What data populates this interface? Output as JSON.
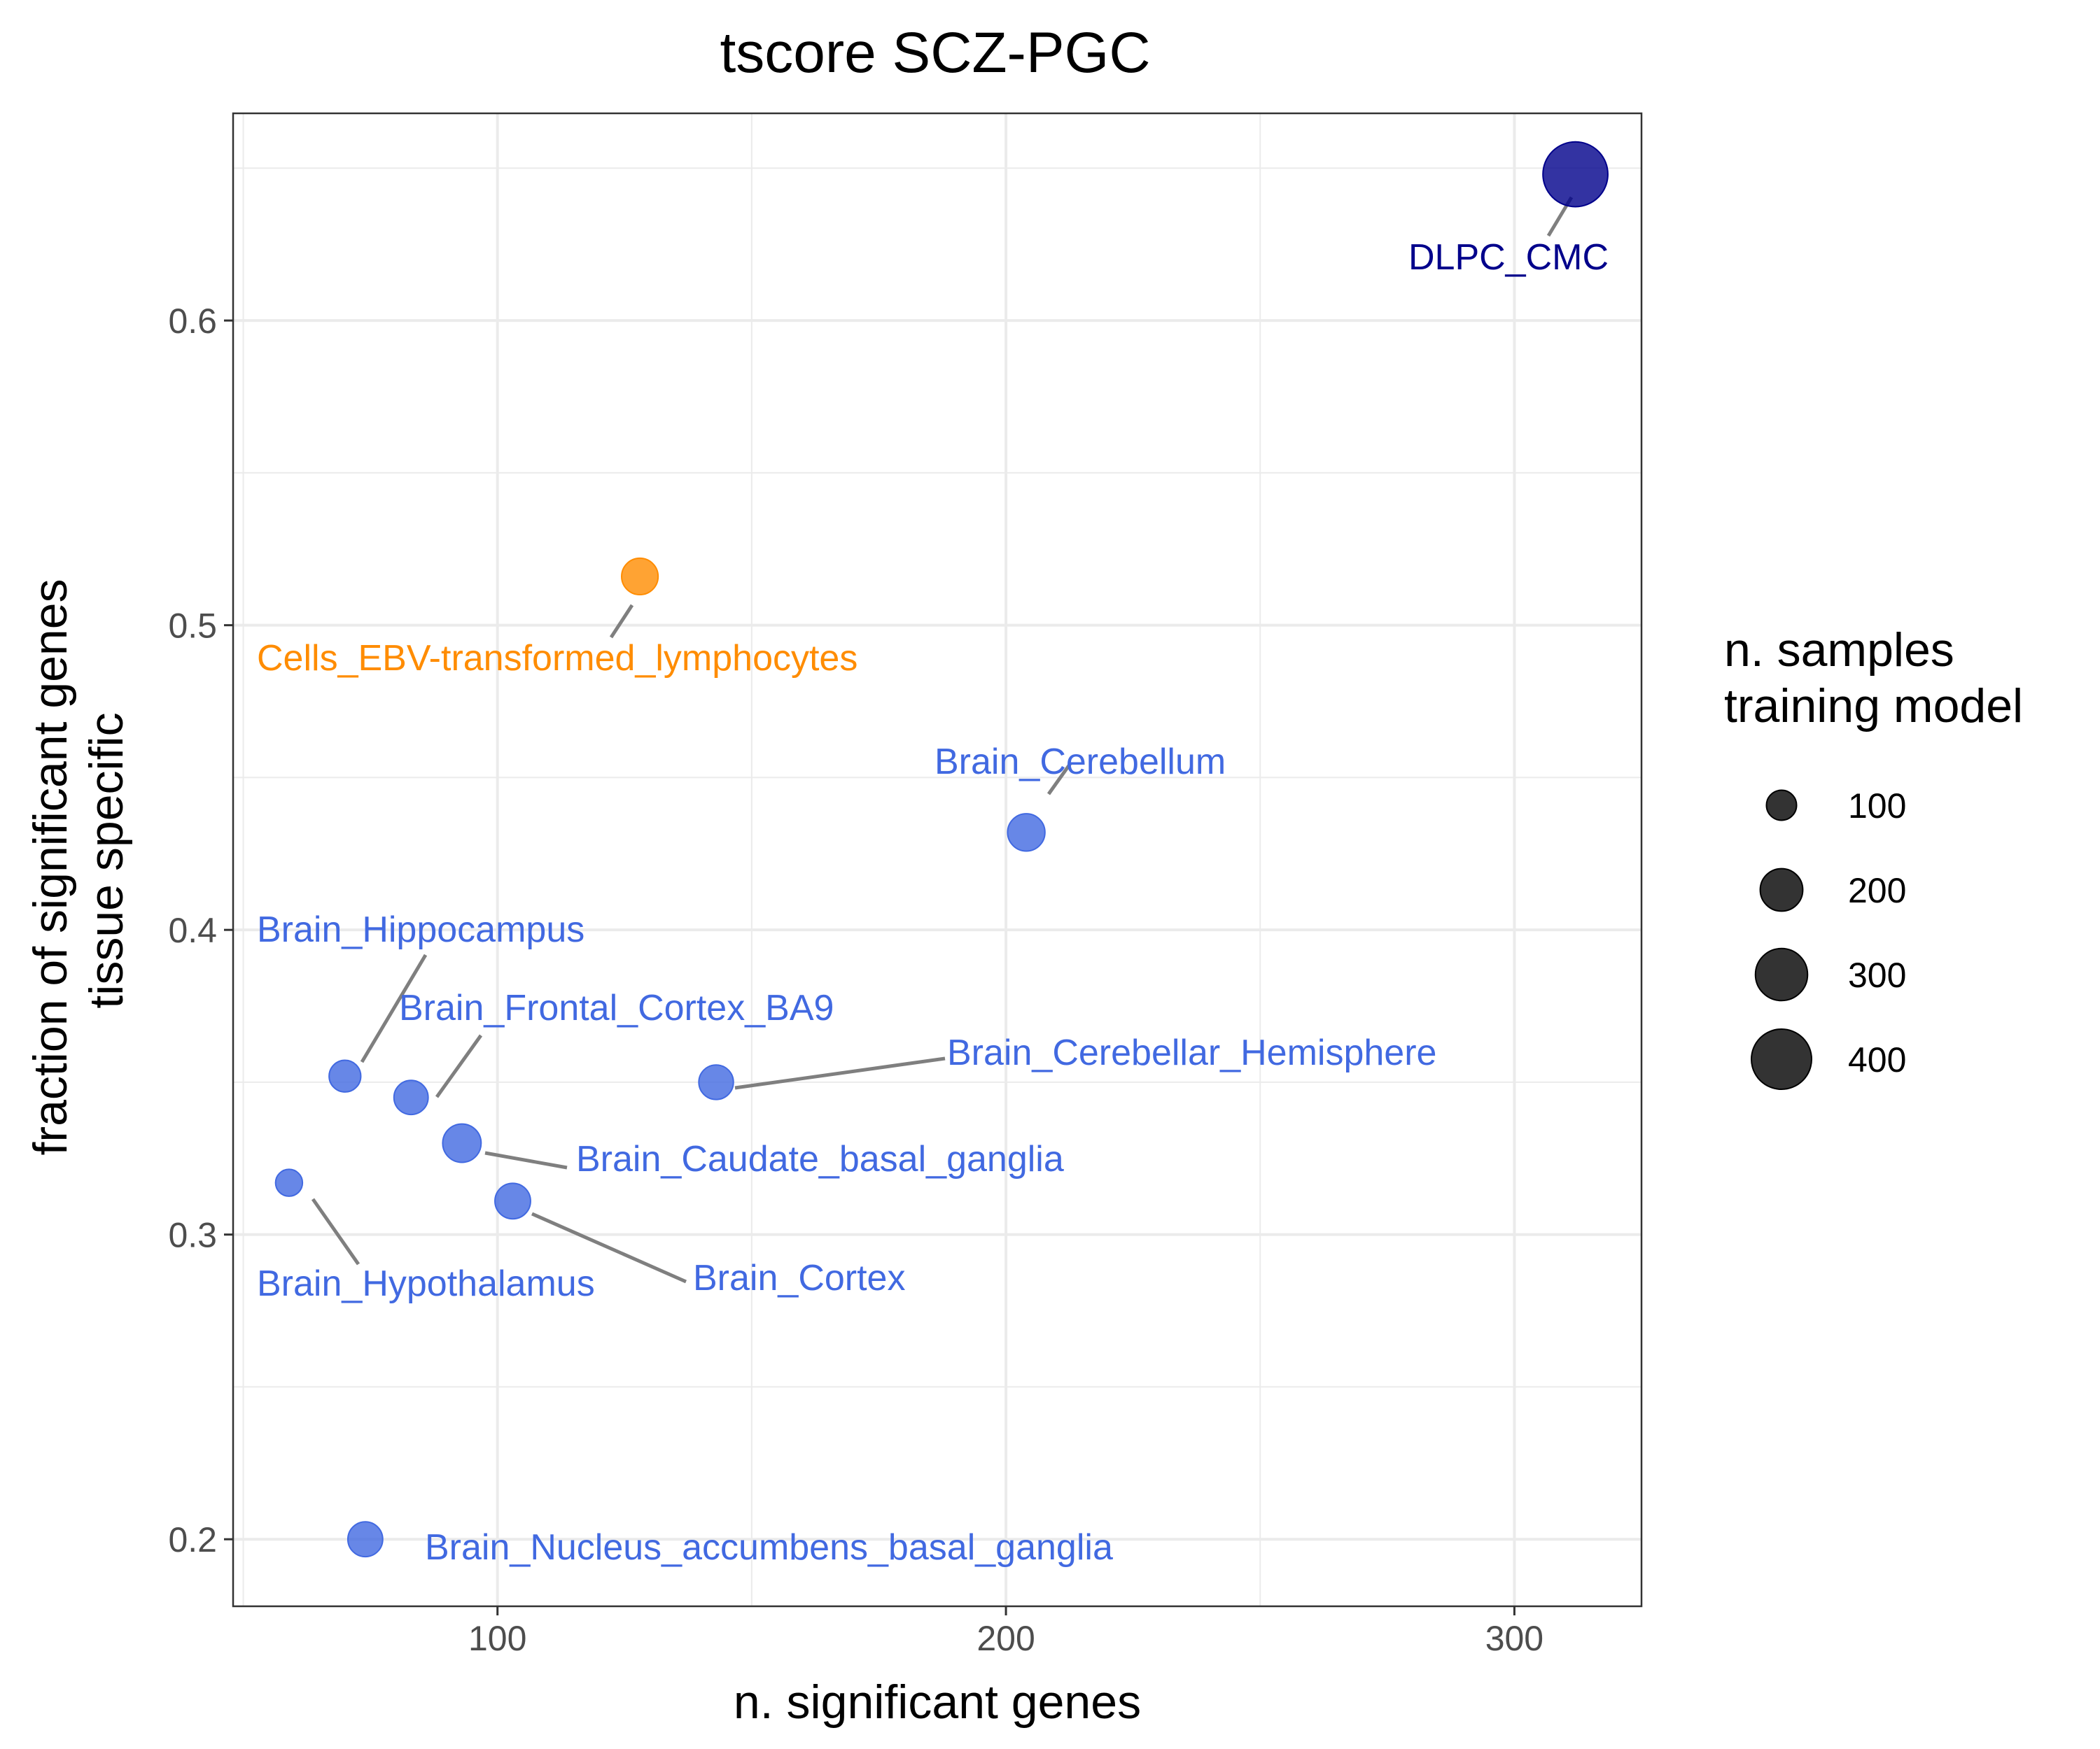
{
  "chart_data": {
    "type": "scatter",
    "title": "tscore SCZ-PGC",
    "xlabel": "n. significant genes",
    "ylabel_lines": [
      "fraction of significant genes",
      "tissue specific"
    ],
    "xlim": [
      48,
      325
    ],
    "ylim": [
      0.178,
      0.668
    ],
    "x_ticks": [
      100,
      200,
      300
    ],
    "y_ticks": [
      0.2,
      0.3,
      0.4,
      0.5,
      0.6
    ],
    "x_tick_labels": [
      "100",
      "200",
      "300"
    ],
    "y_tick_labels": [
      "0.2",
      "0.3",
      "0.4",
      "0.5",
      "0.6"
    ],
    "grid": true,
    "legend": {
      "title_lines": [
        "n. samples",
        "training model"
      ],
      "placement": "right",
      "entries": [
        {
          "label": "100",
          "value": 100
        },
        {
          "label": "200",
          "value": 200
        },
        {
          "label": "300",
          "value": 300
        },
        {
          "label": "400",
          "value": 400
        }
      ]
    },
    "points": [
      {
        "name": "DLPC_CMC",
        "x": 312,
        "y": 0.648,
        "n": 465,
        "color": "#00008b"
      },
      {
        "name": "Cells_EBV-transformed_lymphocytes",
        "x": 128,
        "y": 0.516,
        "n": 147,
        "color": "#ff8c00"
      },
      {
        "name": "Brain_Cerebellum",
        "x": 204,
        "y": 0.432,
        "n": 154,
        "color": "#4169e1"
      },
      {
        "name": "Brain_Hippocampus",
        "x": 70,
        "y": 0.352,
        "n": 111,
        "color": "#4169e1"
      },
      {
        "name": "Brain_Frontal_Cortex_BA9",
        "x": 83,
        "y": 0.345,
        "n": 129,
        "color": "#4169e1"
      },
      {
        "name": "Brain_Cerebellar_Hemisphere",
        "x": 143,
        "y": 0.35,
        "n": 132,
        "color": "#4169e1"
      },
      {
        "name": "Brain_Caudate_basal_ganglia",
        "x": 93,
        "y": 0.33,
        "n": 163,
        "color": "#4169e1"
      },
      {
        "name": "Brain_Cortex",
        "x": 103,
        "y": 0.311,
        "n": 140,
        "color": "#4169e1"
      },
      {
        "name": "Brain_Hypothalamus",
        "x": 59,
        "y": 0.317,
        "n": 80,
        "color": "#4169e1"
      },
      {
        "name": "Brain_Nucleus_accumbens_basal_ganglia",
        "x": 74,
        "y": 0.2,
        "n": 134,
        "color": "#4169e1"
      }
    ]
  }
}
